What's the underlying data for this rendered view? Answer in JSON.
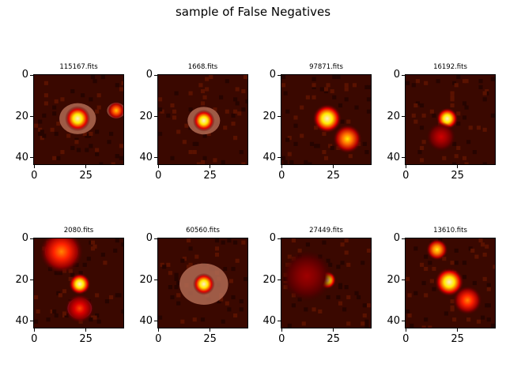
{
  "title": "sample of False Negatives",
  "chart_data": {
    "type": "image-grid",
    "title": "sample of False Negatives",
    "image_size": [
      44,
      44
    ],
    "xticks": [
      "0",
      "25"
    ],
    "yticks": [
      "0",
      "20",
      "40"
    ],
    "colormap": "hot",
    "panels": [
      {
        "label": "115167.fits",
        "sources": [
          {
            "cx": 21,
            "cy": 21,
            "r": 3.5,
            "peak": 1.0,
            "halo": 9,
            "mask": "tan"
          },
          {
            "cx": 40,
            "cy": 17,
            "r": 2.5,
            "peak": 0.7,
            "halo": 3,
            "mask": "tan"
          }
        ]
      },
      {
        "label": "1668.fits",
        "sources": [
          {
            "cx": 22,
            "cy": 22,
            "r": 3,
            "peak": 1.0,
            "halo": 8,
            "mask": "tan"
          }
        ]
      },
      {
        "label": "97871.fits",
        "sources": [
          {
            "cx": 22,
            "cy": 21,
            "r": 4,
            "peak": 1.0,
            "halo": 0,
            "mask": "none"
          },
          {
            "cx": 32,
            "cy": 31,
            "r": 4,
            "peak": 0.75,
            "halo": 0,
            "mask": "none"
          }
        ]
      },
      {
        "label": "16192.fits",
        "sources": [
          {
            "cx": 20,
            "cy": 21,
            "r": 3,
            "peak": 1.0,
            "halo": 0,
            "mask": "none"
          },
          {
            "cx": 17,
            "cy": 30,
            "r": 4,
            "peak": 0.35,
            "halo": 0,
            "mask": "none"
          }
        ]
      },
      {
        "label": "2080.fits",
        "sources": [
          {
            "cx": 22,
            "cy": 22,
            "r": 3,
            "peak": 1.0,
            "halo": 0,
            "mask": "none"
          },
          {
            "cx": 13,
            "cy": 6,
            "r": 6,
            "peak": 0.6,
            "halo": 0,
            "mask": "tan"
          },
          {
            "cx": 22,
            "cy": 34,
            "r": 4,
            "peak": 0.5,
            "halo": 0,
            "mask": "pink"
          }
        ]
      },
      {
        "label": "60560.fits",
        "sources": [
          {
            "cx": 22,
            "cy": 22,
            "r": 3,
            "peak": 1.0,
            "halo": 12,
            "mask": "tan"
          }
        ]
      },
      {
        "label": "27449.fits",
        "sources": [
          {
            "cx": 22,
            "cy": 20,
            "r": 2.5,
            "peak": 1.0,
            "halo": 0,
            "mask": "none"
          },
          {
            "cx": 12,
            "cy": 18,
            "r": 7,
            "peak": 0.25,
            "halo": 0,
            "mask": "none"
          }
        ]
      },
      {
        "label": "13610.fits",
        "sources": [
          {
            "cx": 21,
            "cy": 21,
            "r": 4,
            "peak": 1.0,
            "halo": 4,
            "mask": "none"
          },
          {
            "cx": 15,
            "cy": 5,
            "r": 3,
            "peak": 0.8,
            "halo": 0,
            "mask": "none"
          },
          {
            "cx": 30,
            "cy": 30,
            "r": 4,
            "peak": 0.6,
            "halo": 0,
            "mask": "none"
          }
        ]
      }
    ]
  }
}
